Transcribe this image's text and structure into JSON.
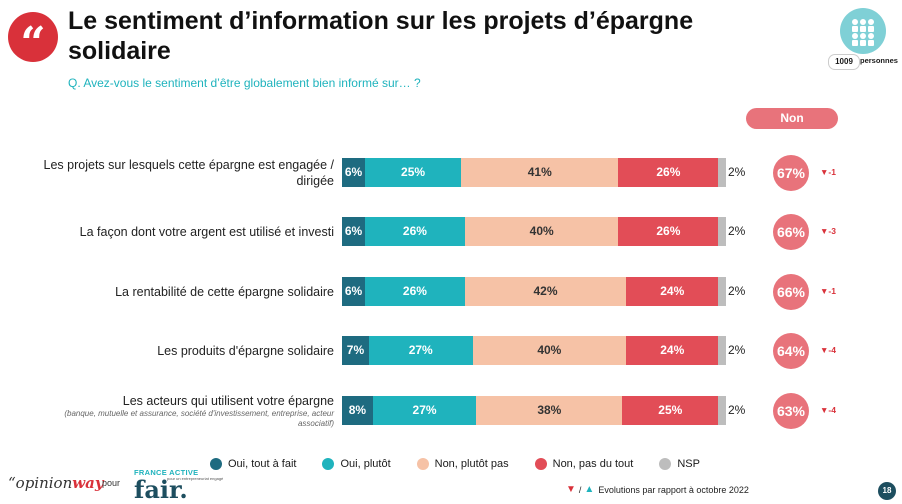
{
  "header": {
    "quote_glyph": "“",
    "title": "Le sentiment d’information sur les projets d’épargne solidaire",
    "subtitle": "Q. Avez-vous le sentiment d’être globalement bien informé sur… ?",
    "panel_count": "1009",
    "panel_label": "personnes",
    "panel_icon": "people-group-icon"
  },
  "colors": {
    "oui_tout_a_fait": "#1e6b80",
    "oui_plutot": "#1fb3bd",
    "non_plutot_pas": "#f6c2a6",
    "non_pas_du_tout": "#e24d57",
    "nsp": "#bdbdbd",
    "non_badge": "#e8737b"
  },
  "chart_data": {
    "type": "bar",
    "orientation": "horizontal",
    "stacked": true,
    "categories": [
      "Les projets sur lesquels cette épargne est engagée / dirigée",
      "La façon dont votre argent est utilisé et investi",
      "La rentabilité de cette épargne solidaire",
      "Les produits d'épargne solidaire",
      "Les acteurs qui utilisent votre épargne"
    ],
    "category_notes": [
      "",
      "",
      "",
      "",
      "(banque, mutuelle et assurance, société d'investissement, entreprise, acteur associatif)"
    ],
    "series": [
      {
        "name": "Oui, tout à fait",
        "values": [
          6,
          6,
          6,
          7,
          8
        ]
      },
      {
        "name": "Oui, plutôt",
        "values": [
          25,
          26,
          26,
          27,
          27
        ]
      },
      {
        "name": "Non, plutôt pas",
        "values": [
          41,
          40,
          42,
          40,
          38
        ]
      },
      {
        "name": "Non, pas du tout",
        "values": [
          26,
          26,
          24,
          24,
          25
        ]
      },
      {
        "name": "NSP",
        "values": [
          2,
          2,
          2,
          2,
          2
        ]
      }
    ],
    "unit": "%",
    "non_header": "Non",
    "non_total": [
      67,
      66,
      66,
      64,
      63
    ],
    "evolution": [
      "-1",
      "-3",
      "-1",
      "-4",
      "-4"
    ],
    "evolution_direction": [
      "down",
      "down",
      "down",
      "down",
      "down"
    ],
    "legend_position": "bottom"
  },
  "footer": {
    "brand_main": "opinion",
    "brand_accent": "way",
    "pour": "pour",
    "partner_top": "FRANCE ACTIVE",
    "partner_sub": "pour un entrepreneuriat engagé",
    "partner_logo": "fair.",
    "footnote": "Evolutions par rapport à octobre 2022",
    "footnote_sep": "/",
    "page": "18"
  }
}
